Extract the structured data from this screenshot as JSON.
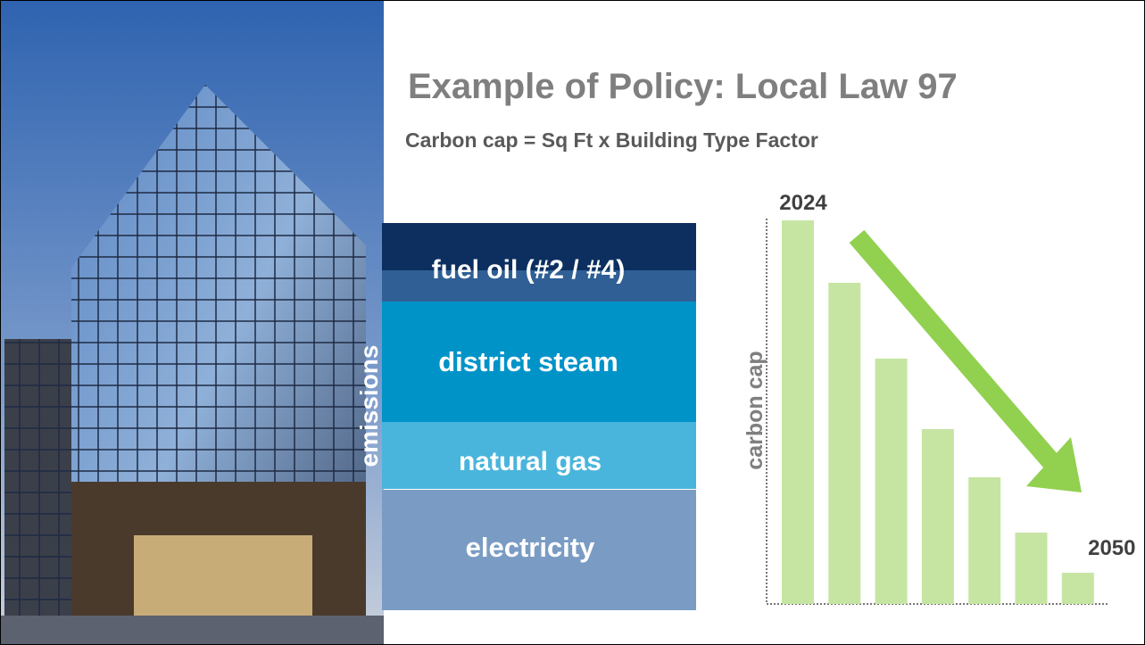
{
  "header": {
    "title": "Example of Policy: Local Law 97",
    "subtitle": "Carbon cap = Sq Ft x Building Type Factor"
  },
  "emissions": {
    "label": "emissions",
    "segments": [
      "fuel oil (#2 / #4)",
      "district steam",
      "natural gas",
      "electricity"
    ]
  },
  "chart_data": {
    "type": "bar",
    "y_label": "carbon cap",
    "categories": [
      "2024",
      null,
      null,
      null,
      null,
      null,
      "2050"
    ],
    "values": [
      430,
      360,
      275,
      196,
      142,
      80,
      35
    ],
    "color": "#c6e5a3",
    "ylim": [
      0,
      432
    ],
    "arrow_color": "#92d050"
  }
}
